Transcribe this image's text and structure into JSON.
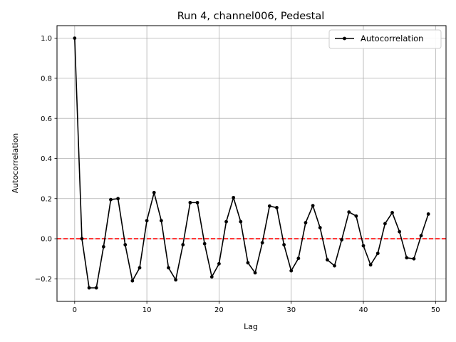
{
  "chart_data": {
    "type": "line",
    "title": "Run 4, channel006, Pedestal",
    "xlabel": "Lag",
    "ylabel": "Autocorrelation",
    "xlim": [
      -2.45,
      51.45
    ],
    "ylim": [
      -0.3125,
      1.0625
    ],
    "xticks": [
      0,
      10,
      20,
      30,
      40,
      50
    ],
    "yticks": [
      -0.2,
      0.0,
      0.2,
      0.4,
      0.6,
      0.8,
      1.0
    ],
    "xtick_labels": [
      "0",
      "10",
      "20",
      "30",
      "40",
      "50"
    ],
    "ytick_labels": [
      "−0.2",
      "0.0",
      "0.2",
      "0.4",
      "0.6",
      "0.8",
      "1.0"
    ],
    "grid": true,
    "legend_position": "top-right",
    "series": [
      {
        "name": "Autocorrelation",
        "color": "#000000",
        "marker": "circle",
        "x": [
          0,
          1,
          2,
          3,
          4,
          5,
          6,
          7,
          8,
          9,
          10,
          11,
          12,
          13,
          14,
          15,
          16,
          17,
          18,
          19,
          20,
          21,
          22,
          23,
          24,
          25,
          26,
          27,
          28,
          29,
          30,
          31,
          32,
          33,
          34,
          35,
          36,
          37,
          38,
          39,
          40,
          41,
          42,
          43,
          44,
          45,
          46,
          47,
          48,
          49
        ],
        "values": [
          1.0,
          0.0,
          -0.245,
          -0.245,
          -0.04,
          0.195,
          0.2,
          -0.03,
          -0.21,
          -0.145,
          0.09,
          0.23,
          0.09,
          -0.145,
          -0.205,
          -0.03,
          0.18,
          0.18,
          -0.025,
          -0.19,
          -0.125,
          0.085,
          0.205,
          0.085,
          -0.12,
          -0.17,
          -0.02,
          0.163,
          0.155,
          -0.03,
          -0.16,
          -0.098,
          0.08,
          0.165,
          0.055,
          -0.105,
          -0.135,
          -0.005,
          0.133,
          0.113,
          -0.035,
          -0.13,
          -0.073,
          0.075,
          0.13,
          0.035,
          -0.095,
          -0.1,
          0.015,
          0.123
        ]
      }
    ],
    "reference_line": {
      "y": 0.0,
      "color": "#ff0000",
      "style": "dashed"
    }
  }
}
